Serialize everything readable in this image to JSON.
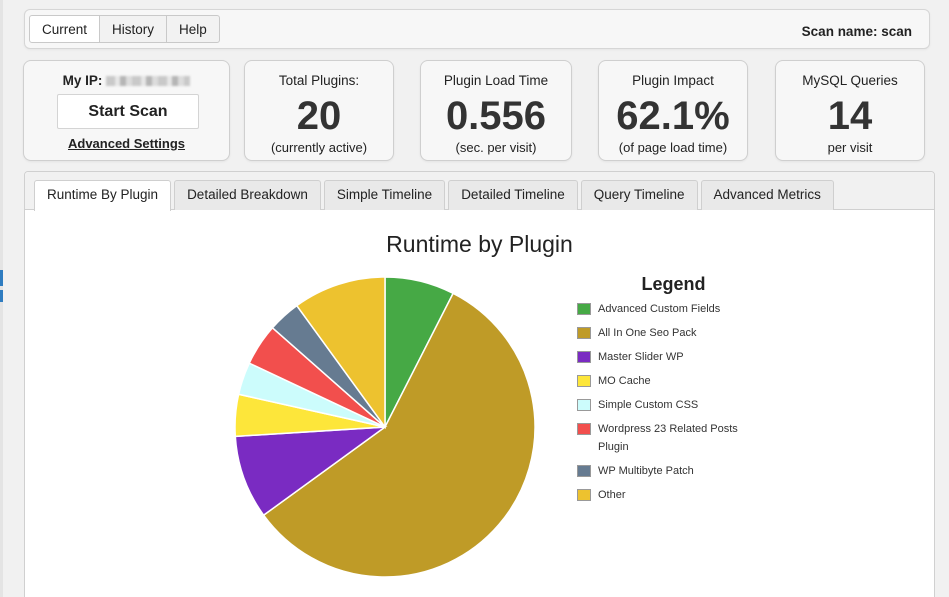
{
  "nav": {
    "buttons": [
      "Current",
      "History",
      "Help"
    ],
    "scan_name_label": "Scan name:",
    "scan_name_value": "scan"
  },
  "ip_box": {
    "label": "My IP:",
    "start_scan_label": "Start Scan",
    "advanced_settings_label": "Advanced Settings"
  },
  "stats": [
    {
      "label": "Total Plugins:",
      "value": "20",
      "sub": "(currently active)"
    },
    {
      "label": "Plugin Load Time",
      "value": "0.556",
      "sub": "(sec. per visit)"
    },
    {
      "label": "Plugin Impact",
      "value": "62.1%",
      "sub": "(of page load time)"
    },
    {
      "label": "MySQL Queries",
      "value": "14",
      "sub": "per visit"
    }
  ],
  "tabs": [
    "Runtime By Plugin",
    "Detailed Breakdown",
    "Simple Timeline",
    "Detailed Timeline",
    "Query Timeline",
    "Advanced Metrics"
  ],
  "chart_data": {
    "type": "pie",
    "title": "Runtime by Plugin",
    "legend_title": "Legend",
    "legend_position": "right",
    "slices": [
      {
        "label": "Advanced Custom Fields",
        "value": 7.5,
        "color": "#46a945"
      },
      {
        "label": "All In One Seo Pack",
        "value": 57.5,
        "color": "#bf9b27"
      },
      {
        "label": "Master Slider WP",
        "value": 9.0,
        "color": "#7a2bc2"
      },
      {
        "label": "MO Cache",
        "value": 4.5,
        "color": "#fde63a"
      },
      {
        "label": "Simple Custom CSS",
        "value": 3.5,
        "color": "#ccfcfc"
      },
      {
        "label": "Wordpress 23 Related Posts Plugin",
        "value": 4.5,
        "color": "#f24f4d"
      },
      {
        "label": "WP Multibyte Patch",
        "value": 3.5,
        "color": "#667b91"
      },
      {
        "label": "Other",
        "value": 10.0,
        "color": "#edc22f"
      }
    ]
  }
}
